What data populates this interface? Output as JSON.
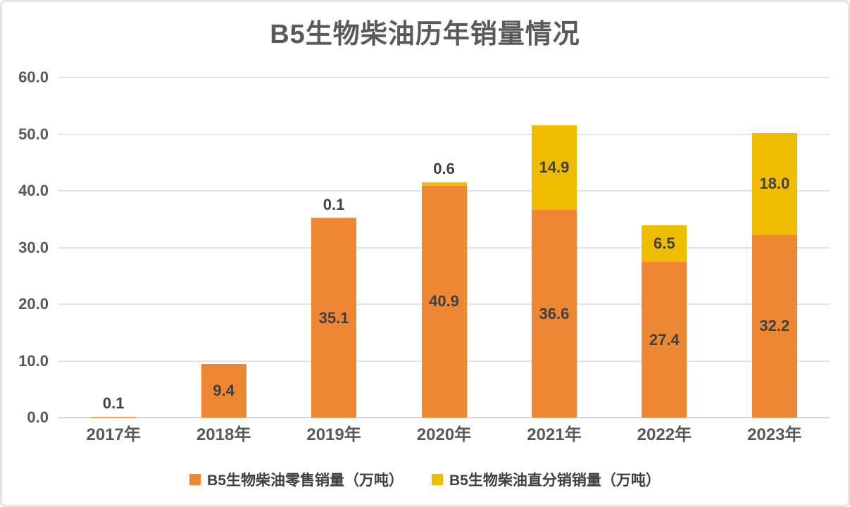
{
  "chart_data": {
    "type": "bar",
    "stacked": true,
    "title": "B5生物柴油历年销量情况",
    "categories": [
      "2017年",
      "2018年",
      "2019年",
      "2020年",
      "2021年",
      "2022年",
      "2023年"
    ],
    "series": [
      {
        "name": "B5生物柴油零售销量（万吨）",
        "color": "#ED8733",
        "values": [
          0.1,
          9.4,
          35.1,
          40.9,
          36.6,
          27.4,
          32.2
        ]
      },
      {
        "name": "B5生物柴油直分销销量（万吨）",
        "color": "#F0BC00",
        "values": [
          null,
          null,
          0.1,
          0.6,
          14.9,
          6.5,
          18.0
        ]
      }
    ],
    "ylim": [
      0,
      60
    ],
    "yticks": [
      0,
      10,
      20,
      30,
      40,
      50,
      60
    ],
    "ytick_labels": [
      "0.0",
      "10.0",
      "20.0",
      "30.0",
      "40.0",
      "50.0",
      "60.0"
    ],
    "grid": true,
    "legend_position": "bottom",
    "colors": {
      "title_text": "#595959",
      "tick_text": "#595959",
      "data_label_text": "#404040",
      "gridline": "#E2E2E2",
      "axis_line": "#D6D6D6"
    }
  }
}
